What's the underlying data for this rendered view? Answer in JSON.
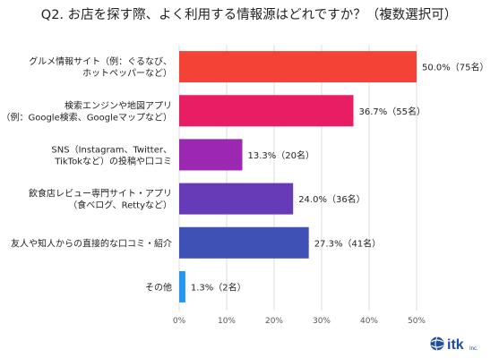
{
  "chart_data": {
    "type": "bar",
    "orientation": "horizontal",
    "title": "Q2. お店を探す際、よく利用する情報源はどれですか？（複数選択可）",
    "categories": [
      [
        "グルメ情報サイト（例：ぐるなび、",
        "ホットペッパーなど）"
      ],
      [
        "検索エンジンや地図アプリ",
        "（例：Google検索、Googleマップなど）"
      ],
      [
        "SNS（Instagram、Twitter、",
        "TikTokなど）の投稿や口コミ"
      ],
      [
        "飲食店レビュー専門サイト・アプリ",
        "（食べログ、Rettyなど）"
      ],
      [
        "友人や知人からの直接的な口コミ・紹介"
      ],
      [
        "その他"
      ]
    ],
    "values": [
      50.0,
      36.7,
      13.3,
      24.0,
      27.3,
      1.3
    ],
    "data_labels": [
      "50.0%（75名）",
      "36.7%（55名）",
      "13.3%（20名）",
      "24.0%（36名）",
      "27.3%（41名）",
      "1.3%（2名）"
    ],
    "colors": [
      "#f44236",
      "#e91d63",
      "#9c27b0",
      "#673ab7",
      "#3f51b5",
      "#2196f3"
    ],
    "xlim": [
      0,
      50
    ],
    "ticks": [
      0,
      10,
      20,
      30,
      40,
      50
    ],
    "tick_labels": [
      "0%",
      "10%",
      "20%",
      "30%",
      "40%",
      "50%"
    ],
    "grid": true
  },
  "logo": {
    "text": "itk",
    "suffix": "Inc.",
    "color": "#1f4e9c"
  }
}
